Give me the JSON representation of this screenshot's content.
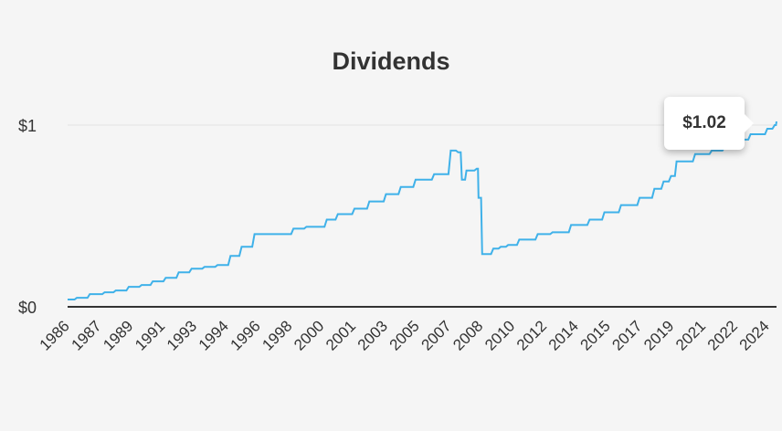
{
  "chart_data": {
    "type": "line",
    "title": "Dividends",
    "xlabel": "",
    "ylabel": "",
    "ylim": [
      0,
      1.02
    ],
    "y_ticks": [
      {
        "value": 0,
        "label": "$0"
      },
      {
        "value": 1,
        "label": "$1"
      }
    ],
    "x_tick_labels": [
      "1986",
      "1987",
      "1989",
      "1991",
      "1993",
      "1994",
      "1996",
      "1998",
      "2000",
      "2001",
      "2003",
      "2005",
      "2007",
      "2008",
      "2010",
      "2012",
      "2014",
      "2015",
      "2017",
      "2019",
      "2021",
      "2022",
      "2024"
    ],
    "grid": true,
    "legend": "none",
    "line_color": "#3fb1e9",
    "series": [
      {
        "x": [
          1986.0,
          1986.5,
          1987.2,
          1988.0,
          1988.6,
          1989.3,
          1990.0,
          1990.6,
          1991.3,
          1992.0,
          1992.7,
          1993.4,
          1994.1,
          1994.8,
          1995.4,
          1996.1,
          1997.0,
          1998.2,
          1998.9,
          2000.0,
          2000.6,
          2001.5,
          2002.3,
          2003.2,
          2004.0,
          2004.8,
          2005.8,
          2006.7,
          2007.1,
          2007.3,
          2007.55,
          2008.1,
          2008.2,
          2008.4,
          2009.0,
          2009.4,
          2009.8,
          2010.4,
          2011.4,
          2012.2,
          2013.2,
          2014.2,
          2015.0,
          2015.9,
          2016.9,
          2017.7,
          2018.2,
          2018.6,
          2018.9,
          2019.9,
          2020.8,
          2021.5,
          2022.1,
          2022.9,
          2023.8,
          2024.2,
          2024.3
        ],
        "y": [
          0.04,
          0.05,
          0.07,
          0.08,
          0.09,
          0.11,
          0.12,
          0.14,
          0.16,
          0.19,
          0.21,
          0.22,
          0.23,
          0.28,
          0.33,
          0.4,
          0.4,
          0.43,
          0.44,
          0.48,
          0.51,
          0.54,
          0.58,
          0.62,
          0.66,
          0.7,
          0.73,
          0.86,
          0.85,
          0.7,
          0.75,
          0.76,
          0.6,
          0.29,
          0.32,
          0.33,
          0.34,
          0.37,
          0.4,
          0.41,
          0.45,
          0.48,
          0.52,
          0.56,
          0.6,
          0.65,
          0.69,
          0.72,
          0.8,
          0.84,
          0.86,
          0.88,
          0.92,
          0.95,
          0.98,
          1.0,
          1.02
        ]
      }
    ],
    "tooltip": "$1.02"
  }
}
